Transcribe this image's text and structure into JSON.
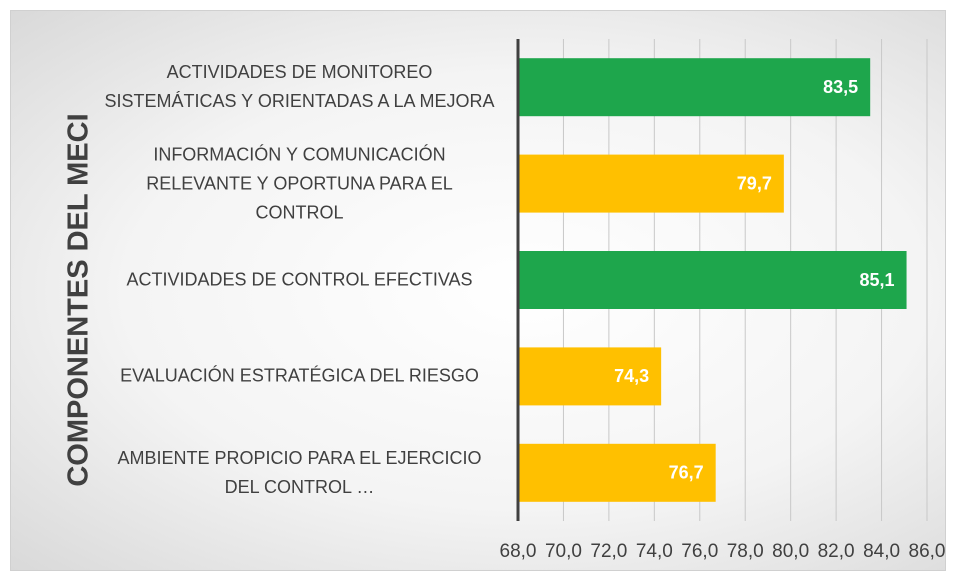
{
  "chart_data": {
    "type": "barh",
    "ylabel": "COMPONENTES DEL MECI",
    "categories": [
      "ACTIVIDADES DE MONITOREO SISTEMÁTICAS Y ORIENTADAS A LA MEJORA",
      "INFORMACIÓN Y COMUNICACIÓN RELEVANTE Y OPORTUNA PARA EL CONTROL",
      "ACTIVIDADES DE CONTROL EFECTIVAS",
      "EVALUACIÓN ESTRATÉGICA DEL RIESGO",
      "AMBIENTE PROPICIO PARA EL EJERCICIO DEL CONTROL …"
    ],
    "values": [
      83.5,
      79.7,
      85.1,
      74.3,
      76.7
    ],
    "value_labels": [
      "83,5",
      "79,7",
      "85,1",
      "74,3",
      "76,7"
    ],
    "colors": [
      "#1ea64c",
      "#ffc000",
      "#1ea64c",
      "#ffc000",
      "#ffc000"
    ],
    "xlim": [
      68,
      86
    ],
    "xticks": [
      {
        "value": 68,
        "label": "68,0"
      },
      {
        "value": 70,
        "label": "70,0"
      },
      {
        "value": 72,
        "label": "72,0"
      },
      {
        "value": 74,
        "label": "74,0"
      },
      {
        "value": 76,
        "label": "76,0"
      },
      {
        "value": 78,
        "label": "78,0"
      },
      {
        "value": 80,
        "label": "80,0"
      },
      {
        "value": 82,
        "label": "82,0"
      },
      {
        "value": 84,
        "label": "84,0"
      },
      {
        "value": 86,
        "label": "86,0"
      }
    ],
    "grid": true
  }
}
